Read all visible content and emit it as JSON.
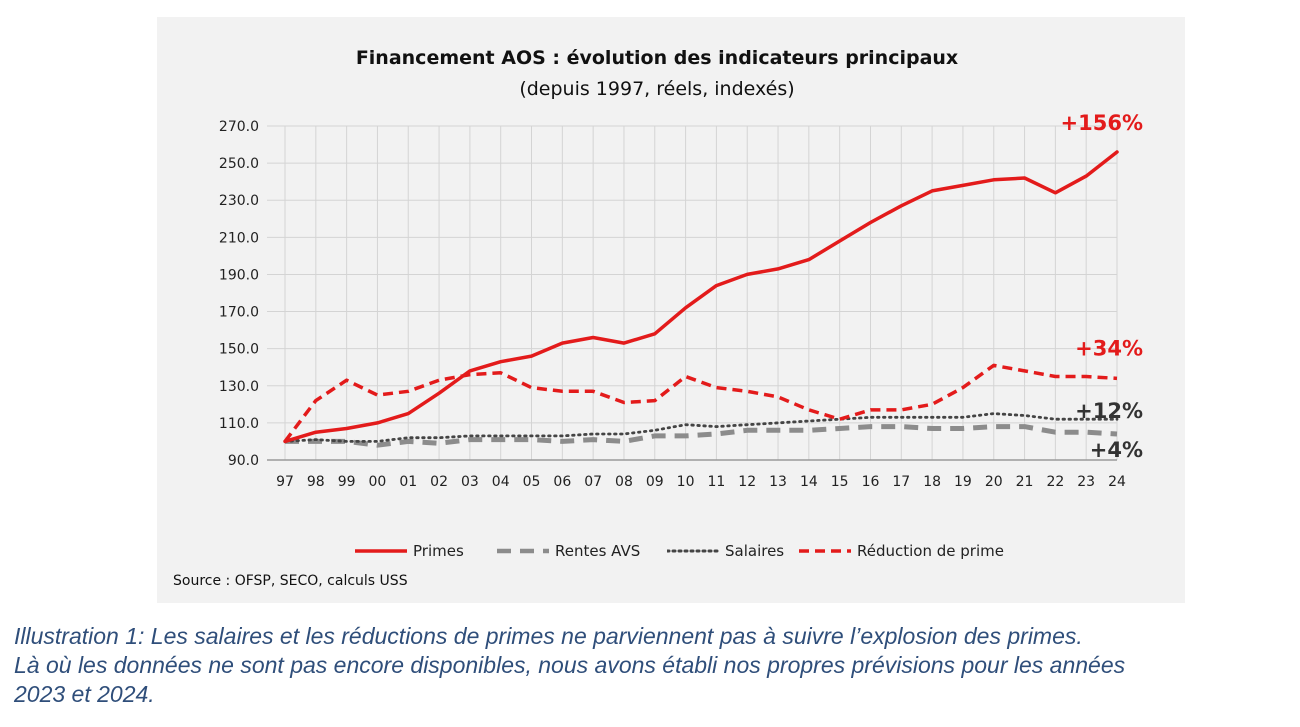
{
  "chart_data": {
    "type": "line",
    "title": "Financement AOS : évolution des indicateurs principaux",
    "subtitle": "(depuis 1997, réels, indexés)",
    "categories": [
      "97",
      "98",
      "99",
      "00",
      "01",
      "02",
      "03",
      "04",
      "05",
      "06",
      "07",
      "08",
      "09",
      "10",
      "11",
      "12",
      "13",
      "14",
      "15",
      "16",
      "17",
      "18",
      "19",
      "20",
      "21",
      "22",
      "23",
      "24"
    ],
    "ylim": [
      90,
      270
    ],
    "yticks": [
      "90.0",
      "110.0",
      "130.0",
      "150.0",
      "170.0",
      "190.0",
      "210.0",
      "230.0",
      "250.0",
      "270.0"
    ],
    "grid": true,
    "series": [
      {
        "name": "Primes",
        "color": "#e31b1b",
        "style": "solid",
        "values": [
          100,
          105,
          107,
          110,
          115,
          126,
          138,
          143,
          146,
          153,
          156,
          153,
          158,
          172,
          184,
          190,
          193,
          198,
          208,
          218,
          227,
          235,
          238,
          241,
          242,
          234,
          243,
          256
        ]
      },
      {
        "name": "Rentes AVS",
        "color": "#8c8c8c",
        "style": "dashed",
        "values": [
          100,
          100,
          100,
          98,
          100,
          99,
          101,
          101,
          101,
          100,
          101,
          100,
          103,
          103,
          104,
          106,
          106,
          106,
          107,
          108,
          108,
          107,
          107,
          108,
          108,
          105,
          105,
          104
        ]
      },
      {
        "name": "Salaires",
        "color": "#444444",
        "style": "dotted",
        "values": [
          100,
          101,
          100,
          100,
          102,
          102,
          103,
          103,
          103,
          103,
          104,
          104,
          106,
          109,
          108,
          109,
          110,
          111,
          112,
          113,
          113,
          113,
          113,
          115,
          114,
          112,
          112,
          112
        ]
      },
      {
        "name": "Réduction de prime",
        "color": "#e31b1b",
        "style": "dashed",
        "values": [
          100,
          122,
          133,
          125,
          127,
          133,
          136,
          137,
          129,
          127,
          127,
          121,
          122,
          135,
          129,
          127,
          124,
          117,
          112,
          117,
          117,
          120,
          129,
          141,
          138,
          135,
          135,
          134
        ]
      }
    ],
    "annotations": [
      {
        "text": "+156%",
        "color": "#e31b1b"
      },
      {
        "text": "+34%",
        "color": "#e31b1b"
      },
      {
        "text": "+12%",
        "color": "#333333"
      },
      {
        "text": "+4%",
        "color": "#333333"
      }
    ],
    "legend_position": "bottom",
    "source": "Source : OFSP, SECO, calculs USS"
  },
  "caption": {
    "line1": "Illustration 1: Les salaires et les réductions de primes ne parviennent pas à suivre l’explosion des primes.",
    "line2": "Là où les données ne sont pas encore disponibles, nous avons établi nos propres prévisions pour les années",
    "line3": "2023 et 2024."
  }
}
